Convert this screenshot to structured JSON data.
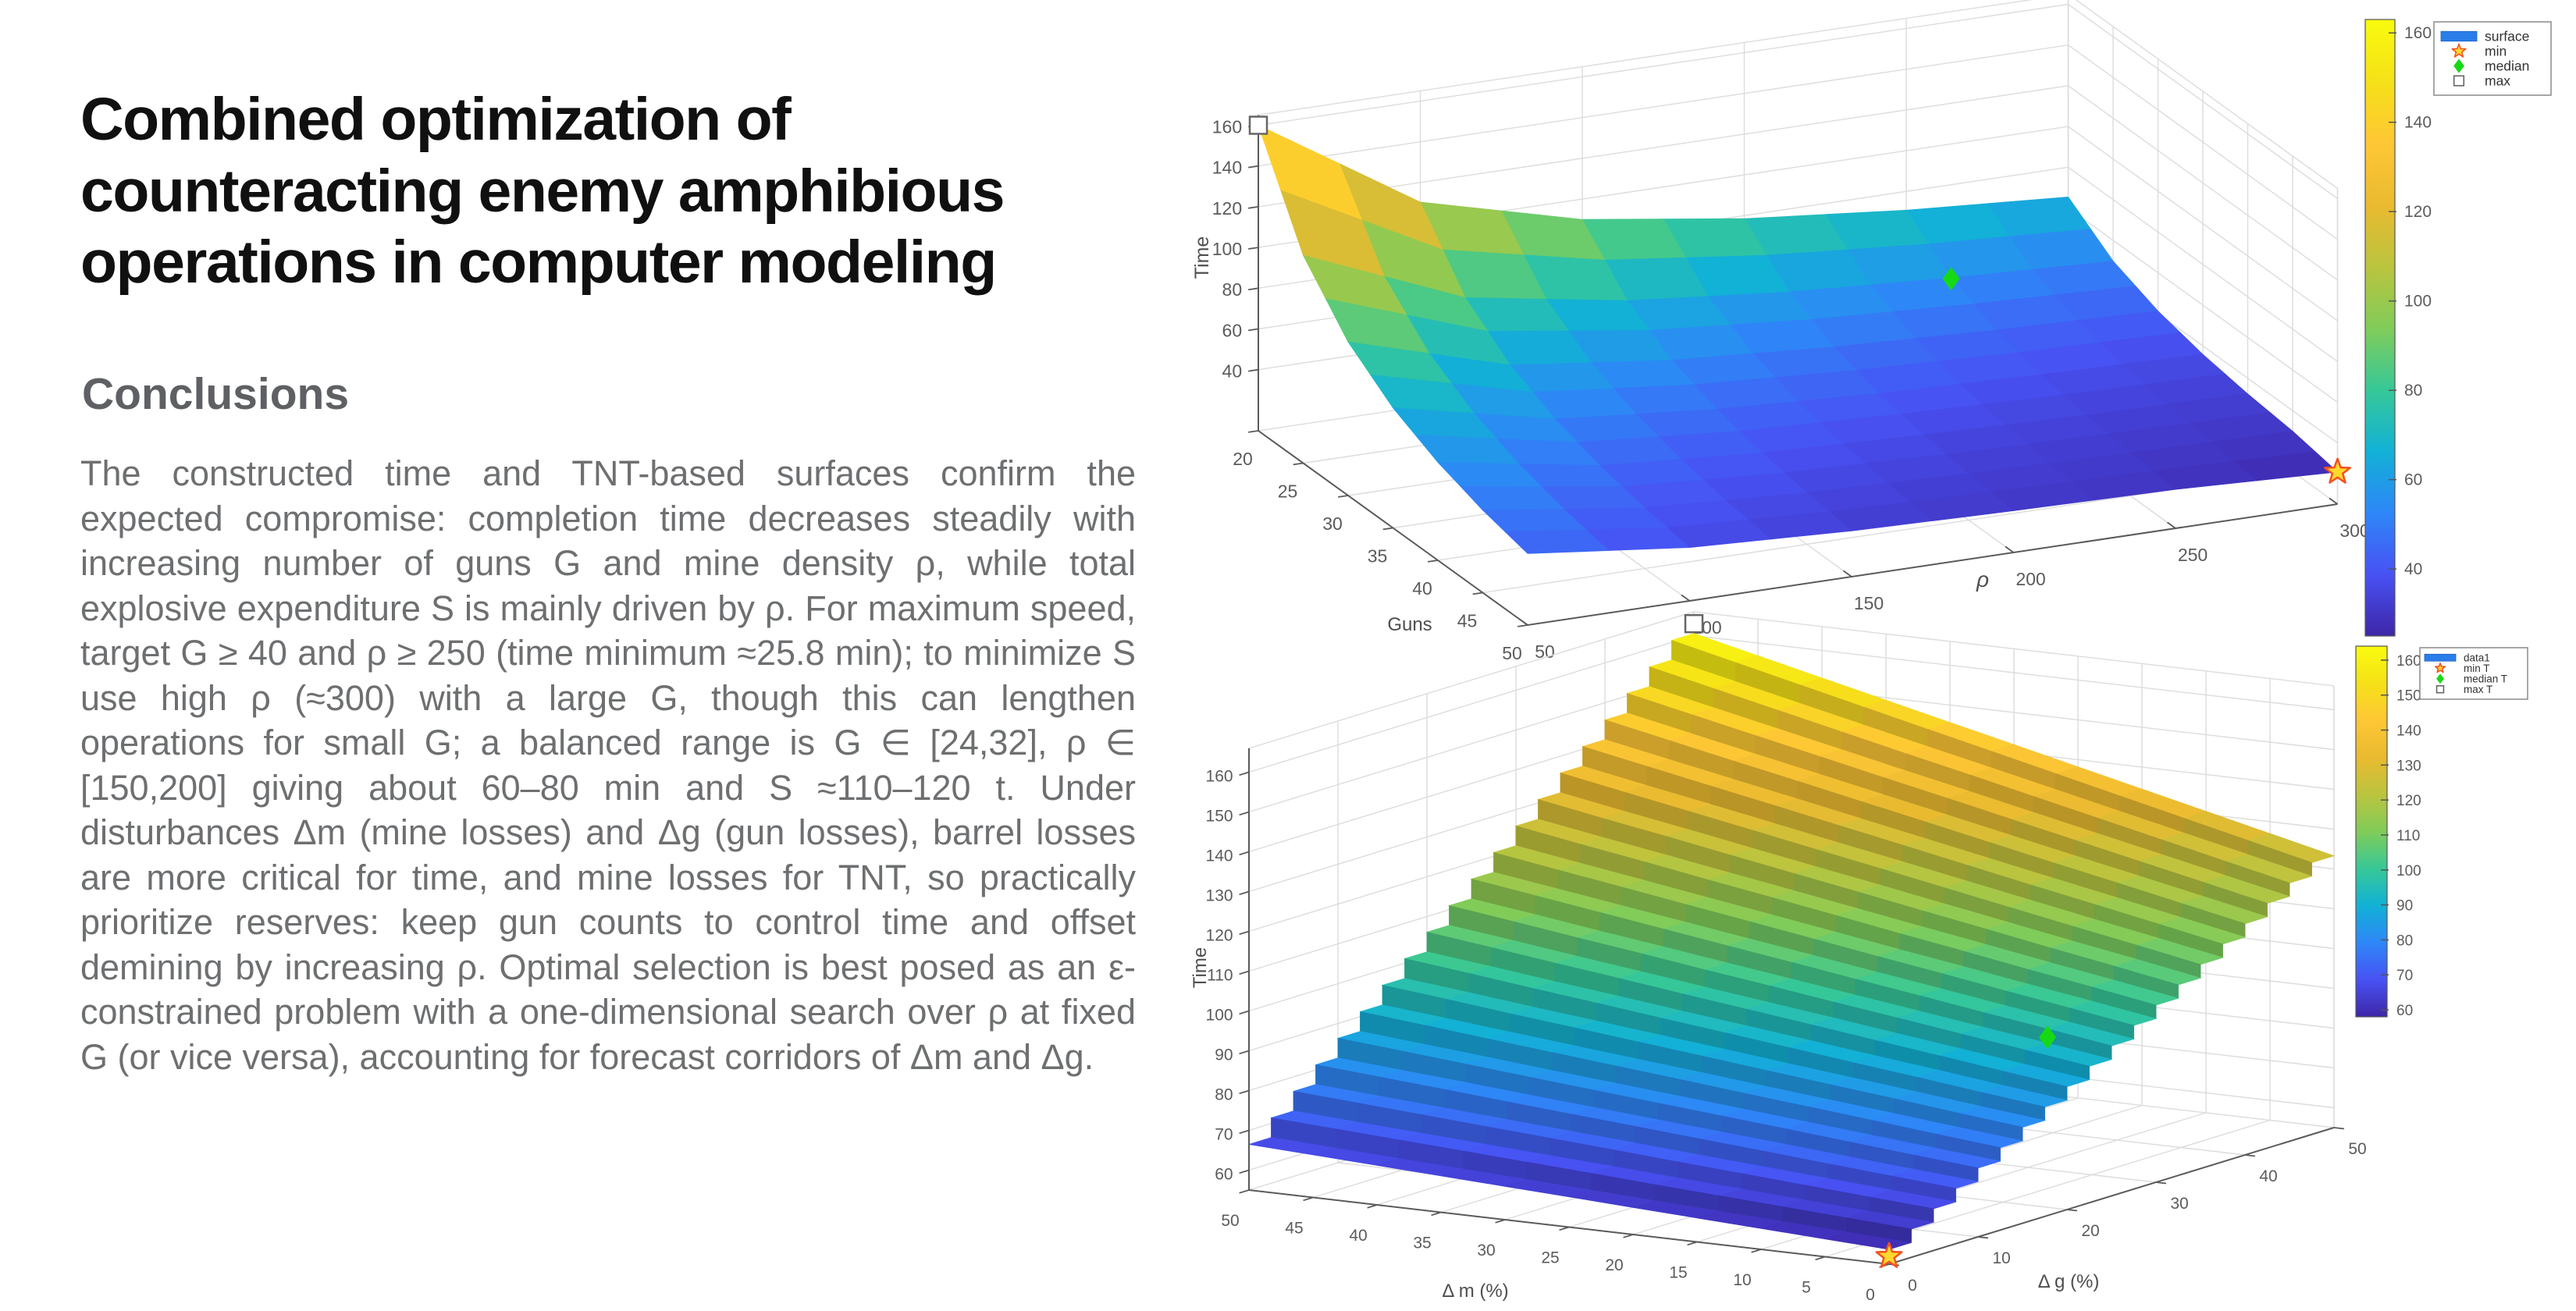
{
  "article": {
    "title_lines": [
      "Combined optimization of",
      "counteracting enemy amphibious",
      "operations in computer modeling"
    ],
    "section_heading": "Conclusions",
    "paragraph": "The constructed time and TNT-based surfaces confirm the expected compromise: completion time decreases steadily with increasing number of guns G and mine density ρ, while total explosive expenditure S is mainly driven by ρ. For maximum speed, target G ≥ 40 and ρ ≥ 250 (time minimum ≈25.8 min); to minimize S use high ρ (≈300) with a large G, though this can lengthen operations for small G; a balanced range is G ∈ [24,32], ρ ∈ [150,200] giving about 60–80 min and S ≈110–120 t. Under disturbances Δm (mine losses) and Δg (gun losses), barrel losses are more critical for time, and mine losses for TNT, so practically prioritize reserves: keep gun counts to control time and offset demining by increasing ρ. Optimal selection is best posed as an ε-constrained problem with a one-dimensional search over ρ at fixed G (or vice versa), accounting for forecast corridors of Δm and Δg."
  },
  "colors": {
    "accent_blue_legend_patch": "#2b7de9",
    "marker_star_fill": "#ffd92e",
    "marker_star_stroke": "#f4511e",
    "marker_diamond": "#16d916",
    "grid": "#dcdcdc",
    "axis": "#5a5a5a",
    "tick_text": "#5b5b5b"
  },
  "chart_data": [
    {
      "type": "surface",
      "name": "time-vs-guns-rho",
      "zlabel": "Time",
      "xlabel": "Guns",
      "ylabel": "ρ",
      "x": [
        20,
        25,
        30,
        35,
        40,
        45,
        50
      ],
      "y": [
        50,
        100,
        150,
        200,
        250,
        300
      ],
      "x_ticks": [
        20,
        25,
        30,
        35,
        40,
        45,
        50
      ],
      "y_ticks": [
        50,
        100,
        150,
        200,
        250,
        300
      ],
      "z_ticks": [
        40,
        60,
        80,
        100,
        120,
        140,
        160
      ],
      "z_grid": [
        [
          160.0,
          110.4,
          90.0,
          78.5,
          70.8,
          65.4
        ],
        [
          112.0,
          79.4,
          66.0,
          58.4,
          53.4,
          49.8
        ],
        [
          85.4,
          62.2,
          52.7,
          47.3,
          43.7,
          41.2
        ],
        [
          68.9,
          51.6,
          44.4,
          40.4,
          37.7,
          35.8
        ],
        [
          58.1,
          44.6,
          39.0,
          35.9,
          33.8,
          32.3
        ],
        [
          50.5,
          39.7,
          35.3,
          32.8,
          31.1,
          29.9
        ],
        [
          45.1,
          36.2,
          32.5,
          30.5,
          29.1,
          25.8
        ]
      ],
      "clim": [
        25,
        160
      ],
      "colorbar": {
        "ticks": [
          40,
          60,
          80,
          100,
          120,
          140,
          160
        ],
        "range": [
          25,
          163
        ]
      },
      "legend": [
        {
          "label": "surface",
          "marker": "patch"
        },
        {
          "label": "min",
          "marker": "star"
        },
        {
          "label": "median",
          "marker": "diamond"
        },
        {
          "label": "max",
          "marker": "square"
        }
      ],
      "markers": [
        {
          "name": "max",
          "shape": "square",
          "x": 20,
          "y": 50,
          "z": 160
        },
        {
          "name": "median",
          "shape": "diamond",
          "x": 25,
          "y": 250,
          "z": 53
        },
        {
          "name": "min",
          "shape": "star",
          "x": 50,
          "y": 300,
          "z": 25.8
        }
      ]
    },
    {
      "type": "surface",
      "name": "time-vs-dm-dg",
      "zlabel": "Time",
      "xlabel": "Δ m  (%)",
      "ylabel": "Δ g  (%)",
      "x": [
        0,
        5,
        10,
        15,
        20,
        25,
        30,
        35,
        40,
        45,
        50
      ],
      "y": [
        0,
        5,
        10,
        15,
        20,
        25,
        30,
        35,
        40,
        45,
        50
      ],
      "x_ticks": [
        50,
        45,
        40,
        35,
        30,
        25,
        20,
        15,
        10,
        5,
        0
      ],
      "y_ticks": [
        0,
        10,
        20,
        30,
        40,
        50
      ],
      "z_ticks": [
        60,
        70,
        80,
        90,
        100,
        110,
        120,
        130,
        140,
        150,
        160
      ],
      "z_grid": [
        [
          57.0,
          63.8,
          70.6,
          77.4,
          84.2,
          91.0,
          97.8,
          104.6,
          111.4,
          118.2,
          125.0
        ],
        [
          57.7,
          64.8,
          71.9,
          79.0,
          86.1,
          93.3,
          100.4,
          107.5,
          114.6,
          121.7,
          128.8
        ],
        [
          58.4,
          65.8,
          73.2,
          80.7,
          88.1,
          95.5,
          102.9,
          110.3,
          117.8,
          125.2,
          132.6
        ],
        [
          59.1,
          66.8,
          74.6,
          82.3,
          90.0,
          97.8,
          105.5,
          113.2,
          120.9,
          128.7,
          136.4
        ],
        [
          59.8,
          67.8,
          75.9,
          83.9,
          92.0,
          100.0,
          108.0,
          116.1,
          124.1,
          132.2,
          140.2
        ],
        [
          60.5,
          68.9,
          77.2,
          85.6,
          93.9,
          102.3,
          110.6,
          119.0,
          127.3,
          135.7,
          144.0
        ],
        [
          61.2,
          69.9,
          78.5,
          87.2,
          95.8,
          104.5,
          113.2,
          121.8,
          130.5,
          139.1,
          147.8
        ],
        [
          61.9,
          70.9,
          79.8,
          88.8,
          97.8,
          106.8,
          115.7,
          124.7,
          133.7,
          142.6,
          151.6
        ],
        [
          62.6,
          71.9,
          81.2,
          90.4,
          99.7,
          109.0,
          118.3,
          127.6,
          136.8,
          146.1,
          155.4
        ],
        [
          63.3,
          72.9,
          82.5,
          92.1,
          101.7,
          111.3,
          120.8,
          130.4,
          140.0,
          149.6,
          159.2
        ],
        [
          64.0,
          73.9,
          83.8,
          93.7,
          103.6,
          113.5,
          123.4,
          133.3,
          143.2,
          153.1,
          163.0
        ]
      ],
      "clim": [
        57,
        163
      ],
      "colorbar": {
        "ticks": [
          60,
          70,
          80,
          90,
          100,
          110,
          120,
          130,
          140,
          150,
          160
        ],
        "range": [
          58,
          164
        ]
      },
      "legend": [
        {
          "label": "data1",
          "marker": "patch"
        },
        {
          "label": "min T",
          "marker": "star"
        },
        {
          "label": "median T",
          "marker": "diamond"
        },
        {
          "label": "max T",
          "marker": "square"
        }
      ],
      "markers": [
        {
          "name": "max T",
          "shape": "square",
          "x": 50,
          "y": 50,
          "z": 163
        },
        {
          "name": "median T",
          "shape": "diamond",
          "x": 5,
          "y": 25,
          "z": 93
        },
        {
          "name": "min T",
          "shape": "star",
          "x": 0,
          "y": 0,
          "z": 57
        }
      ]
    }
  ]
}
